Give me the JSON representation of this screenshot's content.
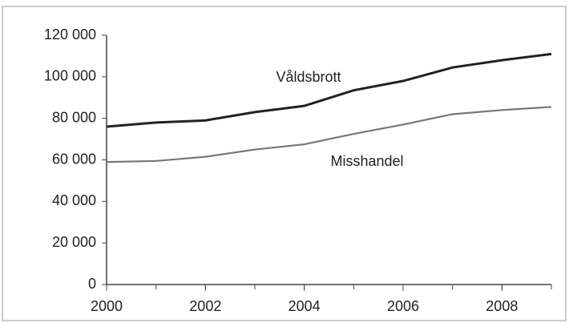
{
  "chart_data": {
    "type": "line",
    "x": [
      2000,
      2001,
      2002,
      2003,
      2004,
      2005,
      2006,
      2007,
      2008,
      2009
    ],
    "series": [
      {
        "name": "Våldsbrott",
        "color": "#222222",
        "values": [
          76000,
          78000,
          79000,
          83000,
          86000,
          93500,
          98000,
          104500,
          108000,
          111000
        ]
      },
      {
        "name": "Misshandel",
        "color": "#777777",
        "values": [
          59000,
          59500,
          61500,
          65000,
          67500,
          72500,
          77000,
          82000,
          84000,
          85500
        ]
      }
    ],
    "xlim": [
      2000,
      2009
    ],
    "xticks": [
      2000,
      2002,
      2004,
      2006,
      2008
    ],
    "ylim": [
      0,
      120000
    ],
    "yticks": [
      0,
      {
        "value": 20000,
        "label": "20 000"
      },
      {
        "value": 40000,
        "label": "40 000"
      },
      {
        "value": 60000,
        "label": "60 000"
      },
      {
        "value": 80000,
        "label": "80 000"
      },
      {
        "value": 100000,
        "label": "100 000"
      },
      {
        "value": 120000,
        "label": "120 000"
      }
    ],
    "grid": false
  }
}
